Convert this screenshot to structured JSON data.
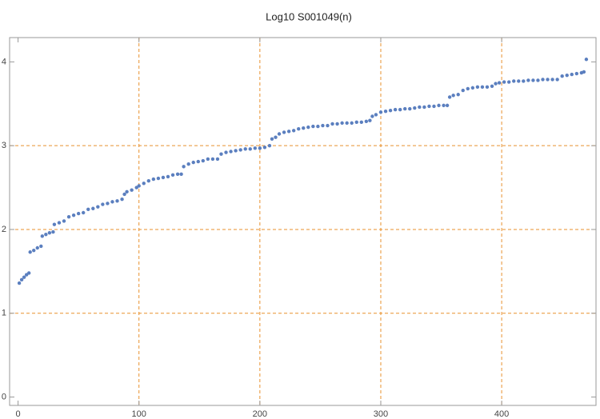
{
  "chart_data": {
    "type": "scatter",
    "title": "Log10 S001049(n)",
    "x": [
      1,
      3,
      5,
      7,
      9,
      10,
      13,
      16,
      19,
      20,
      23,
      26,
      29,
      30,
      34,
      38,
      42,
      46,
      50,
      54,
      58,
      62,
      66,
      70,
      74,
      78,
      82,
      86,
      88,
      90,
      94,
      98,
      100,
      104,
      108,
      112,
      116,
      120,
      124,
      128,
      132,
      135,
      137,
      141,
      145,
      149,
      153,
      157,
      161,
      165,
      168,
      172,
      176,
      180,
      184,
      188,
      192,
      196,
      200,
      204,
      208,
      210,
      213,
      216,
      220,
      224,
      228,
      232,
      236,
      240,
      244,
      248,
      252,
      256,
      260,
      264,
      268,
      272,
      276,
      280,
      284,
      288,
      291,
      293,
      296,
      300,
      304,
      308,
      312,
      316,
      320,
      324,
      328,
      332,
      336,
      340,
      344,
      348,
      352,
      355,
      357,
      360,
      364,
      368,
      372,
      376,
      380,
      384,
      388,
      392,
      395,
      398,
      402,
      406,
      410,
      414,
      418,
      422,
      426,
      430,
      434,
      438,
      442,
      446,
      450,
      454,
      458,
      462,
      466,
      468,
      470
    ],
    "values": [
      1.36,
      1.4,
      1.43,
      1.46,
      1.48,
      1.73,
      1.75,
      1.78,
      1.8,
      1.92,
      1.94,
      1.96,
      1.97,
      2.06,
      2.08,
      2.1,
      2.15,
      2.17,
      2.19,
      2.2,
      2.24,
      2.25,
      2.27,
      2.3,
      2.31,
      2.33,
      2.34,
      2.36,
      2.42,
      2.45,
      2.47,
      2.5,
      2.52,
      2.55,
      2.58,
      2.6,
      2.61,
      2.62,
      2.63,
      2.65,
      2.66,
      2.66,
      2.75,
      2.78,
      2.8,
      2.81,
      2.82,
      2.84,
      2.84,
      2.84,
      2.9,
      2.92,
      2.93,
      2.94,
      2.95,
      2.96,
      2.96,
      2.97,
      2.97,
      2.98,
      3.0,
      3.08,
      3.1,
      3.14,
      3.16,
      3.17,
      3.18,
      3.2,
      3.21,
      3.22,
      3.23,
      3.23,
      3.24,
      3.24,
      3.26,
      3.26,
      3.27,
      3.27,
      3.27,
      3.28,
      3.28,
      3.29,
      3.3,
      3.35,
      3.37,
      3.4,
      3.41,
      3.42,
      3.43,
      3.43,
      3.44,
      3.44,
      3.45,
      3.46,
      3.46,
      3.47,
      3.47,
      3.48,
      3.48,
      3.48,
      3.58,
      3.6,
      3.61,
      3.66,
      3.68,
      3.69,
      3.7,
      3.7,
      3.7,
      3.71,
      3.74,
      3.75,
      3.76,
      3.76,
      3.77,
      3.77,
      3.77,
      3.78,
      3.78,
      3.78,
      3.79,
      3.79,
      3.79,
      3.79,
      3.83,
      3.84,
      3.85,
      3.86,
      3.87,
      3.88,
      4.03
    ],
    "color": "#5b7fbf",
    "xlim": [
      -7,
      478
    ],
    "ylim": [
      -0.1,
      4.29
    ],
    "xticks": [
      0,
      100,
      200,
      300,
      400
    ],
    "yticks": [
      0,
      1,
      2,
      3,
      4
    ],
    "grid_x": [
      100,
      200,
      300,
      400
    ],
    "grid_y": [
      1,
      2,
      3
    ],
    "grid_color": "#e8912d"
  }
}
